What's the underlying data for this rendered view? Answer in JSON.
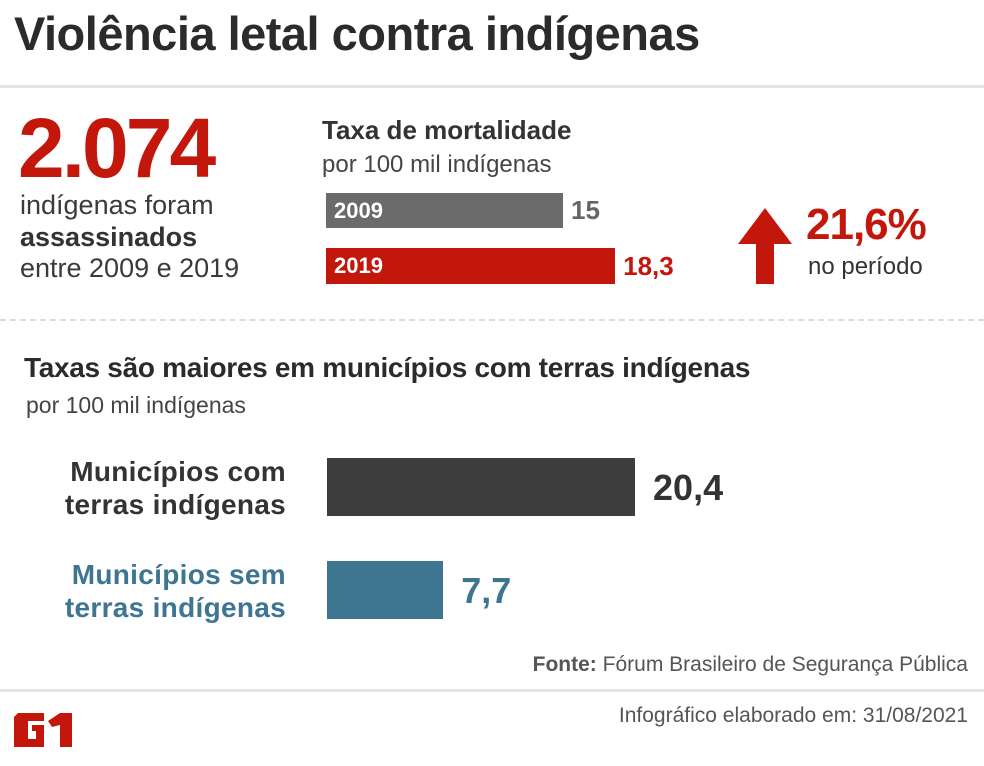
{
  "title": "Violência letal contra indígenas",
  "highlight": {
    "number": "2.074",
    "line1": "indígenas foram",
    "line2": "assassinados",
    "line3": "entre 2009 e 2019"
  },
  "change": {
    "value": "21,6%",
    "label": "no período",
    "icon": "arrow-up-icon"
  },
  "colors": {
    "red": "#c4170c",
    "gray": "#6b6b6b",
    "dark": "#3d3d3d",
    "blue": "#3e7591"
  },
  "chart_data": [
    {
      "type": "bar",
      "orientation": "horizontal",
      "title": "Taxa de mortalidade",
      "subtitle": "por 100 mil indígenas",
      "categories": [
        "2009",
        "2019"
      ],
      "values": [
        15,
        18.3
      ],
      "value_labels": [
        "15",
        "18,3"
      ]
    },
    {
      "type": "bar",
      "orientation": "horizontal",
      "title": "Taxas são maiores em municípios com terras indígenas",
      "subtitle": "por 100 mil indígenas",
      "categories": [
        [
          "Municípios com",
          "terras indígenas"
        ],
        [
          "Municípios sem",
          "terras indígenas"
        ]
      ],
      "values": [
        20.4,
        7.7
      ],
      "value_labels": [
        "20,4",
        "7,7"
      ]
    }
  ],
  "footer": {
    "source_label": "Fonte:",
    "source": "Fórum Brasileiro de Segurança Pública",
    "made": "Infográfico elaborado em: 31/08/2021",
    "logo": "G1"
  }
}
